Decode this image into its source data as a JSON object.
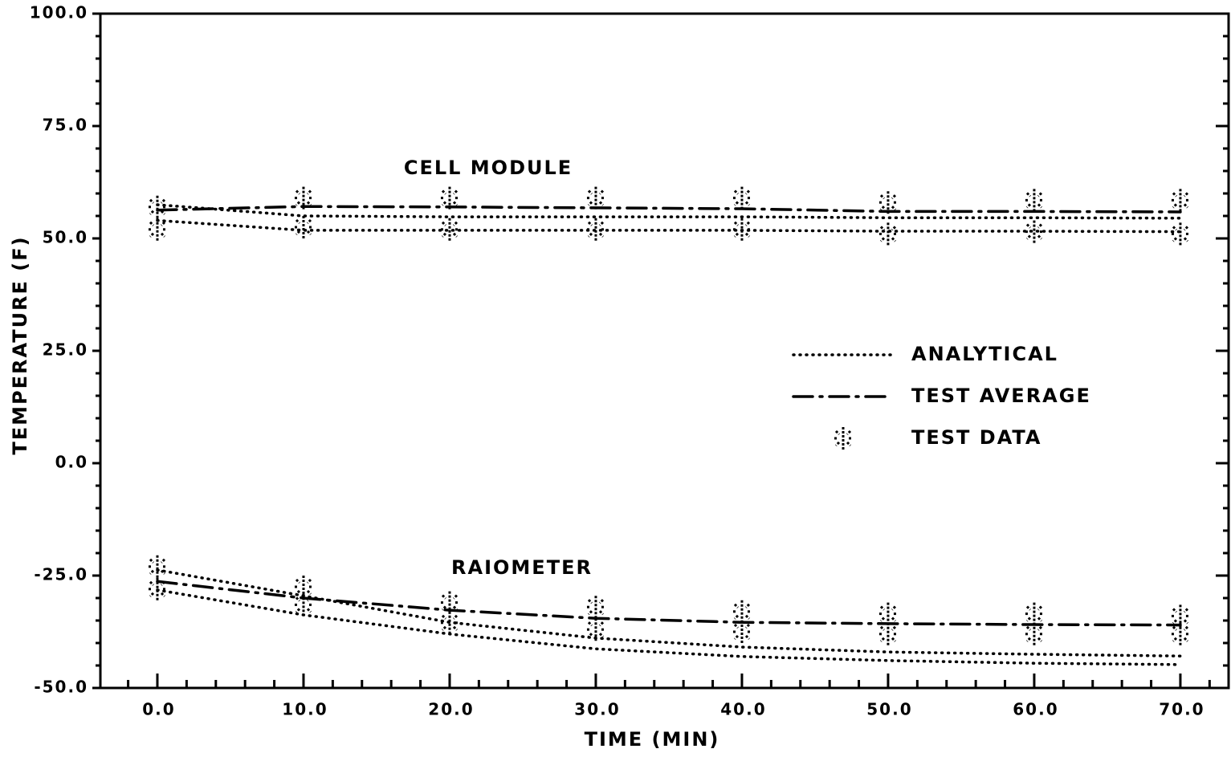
{
  "chart_data": {
    "type": "line",
    "xlabel": "TIME (MIN)",
    "ylabel": "TEMPERATURE (F)",
    "annotations": [
      "CELL MODULE",
      "RAIOMETER"
    ],
    "x": [
      0,
      10,
      20,
      30,
      40,
      50,
      60,
      70
    ],
    "xlim": [
      -3.9,
      73.3
    ],
    "ylim": [
      -50,
      100
    ],
    "xticks": [
      {
        "value": 0,
        "label": "0.0"
      },
      {
        "value": 10,
        "label": "10.0"
      },
      {
        "value": 20,
        "label": "20.0"
      },
      {
        "value": 30,
        "label": "30.0"
      },
      {
        "value": 40,
        "label": "40.0"
      },
      {
        "value": 50,
        "label": "50.0"
      },
      {
        "value": 60,
        "label": "60.0"
      },
      {
        "value": 70,
        "label": "70.0"
      }
    ],
    "yticks": [
      {
        "value": -50,
        "label": "-50.0"
      },
      {
        "value": -25,
        "label": "-25.0"
      },
      {
        "value": 0,
        "label": "0.0"
      },
      {
        "value": 25,
        "label": "25.0"
      },
      {
        "value": 50,
        "label": "50.0"
      },
      {
        "value": 75,
        "label": "75.0"
      },
      {
        "value": 100,
        "label": "100.0"
      }
    ],
    "xminorticks": [
      -2,
      2,
      4,
      6,
      8,
      12,
      14,
      16,
      18,
      22,
      24,
      26,
      28,
      32,
      34,
      36,
      38,
      42,
      44,
      46,
      48,
      52,
      54,
      56,
      58,
      62,
      64,
      66,
      68,
      72
    ],
    "yminorticks": [
      -45,
      -40,
      -35,
      -30,
      -20,
      -15,
      -10,
      -5,
      5,
      10,
      15,
      20,
      30,
      35,
      40,
      45,
      55,
      60,
      65,
      70,
      80,
      85,
      90,
      95
    ],
    "series": [
      {
        "name": "ANALYTICAL",
        "color": "#000000",
        "dash": "dotted",
        "lines": [
          [
            57.5,
            55,
            54.8,
            54.8,
            54.8,
            54.6,
            54.6,
            54.5
          ],
          [
            54,
            51.8,
            51.8,
            51.8,
            51.8,
            51.6,
            51.6,
            51.5
          ],
          [
            -23.75,
            -29.5,
            -35.4,
            -38.9,
            -40.9,
            -42,
            -42.5,
            -42.9
          ],
          [
            -28.2,
            -33.75,
            -38,
            -41.3,
            -43,
            -43.9,
            -44.5,
            -44.8
          ]
        ]
      },
      {
        "name": "TEST AVERAGE",
        "color": "#000000",
        "dash": "dashdot",
        "lines": [
          [
            56.3,
            57.1,
            57,
            56.8,
            56.6,
            56,
            56,
            55.9
          ],
          [
            -26.3,
            -30,
            -32.7,
            -34.5,
            -35.4,
            -35.7,
            -35.9,
            -36
          ]
        ]
      },
      {
        "name": "TEST DATA",
        "color": "#000000",
        "marker": "asterisk",
        "lines": [
          [
            57,
            59,
            59,
            59,
            59,
            58,
            58.5,
            58.5
          ],
          [
            52,
            52.5,
            52,
            52,
            52,
            51,
            51.5,
            51
          ],
          [
            -23,
            -27.5,
            -31,
            -32,
            -33,
            -33.5,
            -33.5,
            -34
          ],
          [
            -28,
            -31.5,
            -35.5,
            -37,
            -37.5,
            -38,
            -38,
            -38
          ]
        ]
      }
    ]
  }
}
